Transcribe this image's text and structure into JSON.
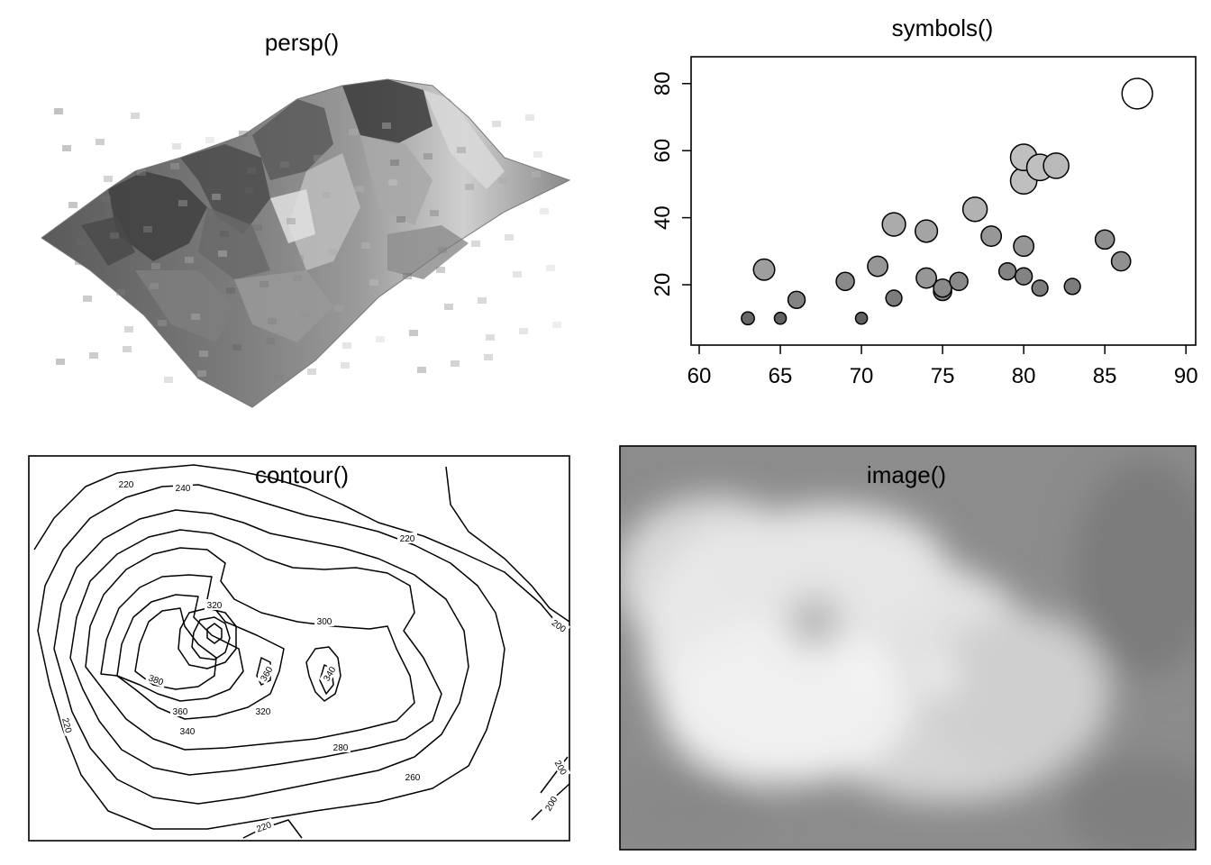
{
  "chart_data": [
    {
      "type": "surface",
      "title": "persp()"
    },
    {
      "type": "scatter",
      "title": "symbols()",
      "xlim": [
        60,
        90
      ],
      "ylim": [
        5,
        85
      ],
      "x_ticks": [
        "60",
        "65",
        "70",
        "75",
        "80",
        "85",
        "90"
      ],
      "y_ticks": [
        "20",
        "40",
        "60",
        "80"
      ],
      "points": [
        {
          "x": 63,
          "y": 10,
          "size": 0.6
        },
        {
          "x": 64,
          "y": 24.5,
          "size": 1.0
        },
        {
          "x": 65,
          "y": 10,
          "size": 0.55
        },
        {
          "x": 66,
          "y": 15.5,
          "size": 0.8
        },
        {
          "x": 69,
          "y": 21,
          "size": 0.85
        },
        {
          "x": 70,
          "y": 10,
          "size": 0.55
        },
        {
          "x": 71,
          "y": 25.5,
          "size": 0.95
        },
        {
          "x": 72,
          "y": 16,
          "size": 0.75
        },
        {
          "x": 72,
          "y": 38,
          "size": 1.1
        },
        {
          "x": 74,
          "y": 22,
          "size": 0.95
        },
        {
          "x": 74,
          "y": 36,
          "size": 1.05
        },
        {
          "x": 75,
          "y": 18,
          "size": 0.85
        },
        {
          "x": 75,
          "y": 19,
          "size": 0.85
        },
        {
          "x": 76,
          "y": 21,
          "size": 0.85
        },
        {
          "x": 77,
          "y": 42.5,
          "size": 1.15
        },
        {
          "x": 78,
          "y": 34.5,
          "size": 0.95
        },
        {
          "x": 79,
          "y": 24,
          "size": 0.8
        },
        {
          "x": 80,
          "y": 22.5,
          "size": 0.8
        },
        {
          "x": 80,
          "y": 31.5,
          "size": 0.95
        },
        {
          "x": 80,
          "y": 51,
          "size": 1.25
        },
        {
          "x": 80,
          "y": 58,
          "size": 1.25
        },
        {
          "x": 81,
          "y": 19,
          "size": 0.75
        },
        {
          "x": 81,
          "y": 55,
          "size": 1.25
        },
        {
          "x": 82,
          "y": 55.5,
          "size": 1.2
        },
        {
          "x": 83,
          "y": 19.5,
          "size": 0.75
        },
        {
          "x": 85,
          "y": 33.5,
          "size": 0.9
        },
        {
          "x": 86,
          "y": 27,
          "size": 0.9
        },
        {
          "x": 87,
          "y": 77,
          "size": 1.45
        }
      ]
    },
    {
      "type": "contour",
      "title": "contour()",
      "labels": [
        "220",
        "240",
        "220",
        "320",
        "300",
        "200",
        "380",
        "360",
        "340",
        "360",
        "340",
        "320",
        "280",
        "260",
        "220",
        "200",
        "200",
        "220"
      ]
    },
    {
      "type": "heatmap",
      "title": "image()"
    }
  ],
  "colors": {
    "ink": "#000000",
    "surface_base": "#8a8a8a",
    "image_bg": "#8c8c8c",
    "image_high": "#f2f2f2"
  }
}
